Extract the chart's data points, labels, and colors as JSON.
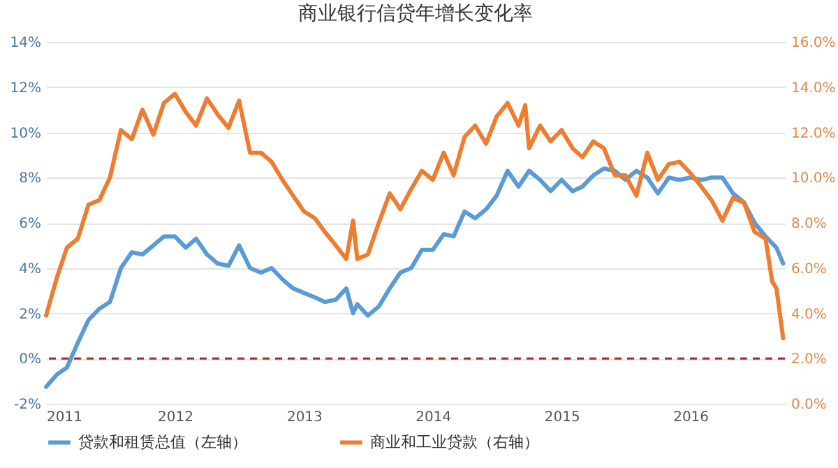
{
  "chart_data": {
    "type": "line",
    "title": "商业银行信贷年增长变化率",
    "xlim": [
      "2011-01-01",
      "2016-09-25"
    ],
    "xticks": [
      "2011",
      "2012",
      "2013",
      "2014",
      "2015",
      "2016"
    ],
    "ylim": [
      -2,
      14
    ],
    "yticks": [
      {
        "value": -2,
        "label": "-2%"
      },
      {
        "value": 0,
        "label": "0%"
      },
      {
        "value": 2,
        "label": "2%"
      },
      {
        "value": 4,
        "label": "4%"
      },
      {
        "value": 6,
        "label": "6%"
      },
      {
        "value": 8,
        "label": "8%"
      },
      {
        "value": 10,
        "label": "10%"
      },
      {
        "value": 12,
        "label": "12%"
      },
      {
        "value": 14,
        "label": "14%"
      }
    ],
    "y2lim": [
      0,
      16
    ],
    "y2ticks": [
      {
        "value": 0,
        "label": "0.0%"
      },
      {
        "value": 2,
        "label": "2.0%"
      },
      {
        "value": 4,
        "label": "4.0%"
      },
      {
        "value": 6,
        "label": "6.0%"
      },
      {
        "value": 8,
        "label": "8.0%"
      },
      {
        "value": 10,
        "label": "10.0%"
      },
      {
        "value": 12,
        "label": "12.0%"
      },
      {
        "value": 14,
        "label": "14.0%"
      },
      {
        "value": 16,
        "label": "16.0%"
      }
    ],
    "grid": "y",
    "legend": "bottom",
    "line_style": "solid",
    "marker": "none",
    "ref_lines": [
      {
        "axis": "y",
        "value": 0,
        "color": "#a52a2a",
        "line_style": "dashed"
      }
    ],
    "series": [
      {
        "name": "贷款和租赁总值（左轴）",
        "color": "#5b9bd5",
        "x": [
          "2011-01-01",
          "2011-02-01",
          "2011-03-01",
          "2011-04-01",
          "2011-05-01",
          "2011-06-01",
          "2011-07-01",
          "2011-08-01",
          "2011-09-01",
          "2011-10-01",
          "2011-11-01",
          "2011-12-01",
          "2012-01-01",
          "2012-02-01",
          "2012-03-01",
          "2012-04-01",
          "2012-05-01",
          "2012-06-01",
          "2012-07-01",
          "2012-08-01",
          "2012-09-01",
          "2012-10-01",
          "2012-11-01",
          "2012-12-01",
          "2013-01-01",
          "2013-02-01",
          "2013-03-01",
          "2013-04-01",
          "2013-05-01",
          "2013-05-20",
          "2013-06-01",
          "2013-07-01",
          "2013-08-01",
          "2013-09-01",
          "2013-10-01",
          "2013-11-01",
          "2013-12-01",
          "2014-01-01",
          "2014-02-01",
          "2014-03-01",
          "2014-04-01",
          "2014-05-01",
          "2014-06-01",
          "2014-07-01",
          "2014-08-01",
          "2014-09-01",
          "2014-10-01",
          "2014-11-01",
          "2014-12-01",
          "2015-01-01",
          "2015-02-01",
          "2015-03-01",
          "2015-04-01",
          "2015-05-01",
          "2015-06-01",
          "2015-07-01",
          "2015-08-01",
          "2015-09-01",
          "2015-10-01",
          "2015-11-01",
          "2015-12-01",
          "2016-01-01",
          "2016-02-01",
          "2016-03-01",
          "2016-04-01",
          "2016-05-01",
          "2016-06-01",
          "2016-07-01",
          "2016-08-01",
          "2016-09-01",
          "2016-09-20"
        ],
        "values": [
          -1.25,
          -0.7,
          -0.4,
          0.7,
          1.7,
          2.2,
          2.5,
          4.0,
          4.7,
          4.6,
          5.0,
          5.4,
          5.4,
          4.9,
          5.3,
          4.6,
          4.2,
          4.1,
          5.0,
          4.0,
          3.8,
          4.0,
          3.5,
          3.1,
          2.9,
          2.7,
          2.5,
          2.6,
          3.1,
          2.0,
          2.4,
          1.9,
          2.3,
          3.1,
          3.8,
          4.0,
          4.8,
          4.8,
          5.5,
          5.4,
          6.5,
          6.2,
          6.6,
          7.2,
          8.3,
          7.6,
          8.3,
          7.9,
          7.4,
          7.9,
          7.4,
          7.6,
          8.1,
          8.4,
          8.3,
          7.9,
          8.3,
          8.0,
          7.3,
          8.0,
          7.9,
          8.0,
          7.9,
          8.0,
          8.0,
          7.3,
          6.9,
          6.0,
          5.4,
          4.9,
          4.2
        ]
      },
      {
        "name": "商业和工业贷款（右轴）",
        "color": "#ed7d31",
        "axis": "y2",
        "x": [
          "2011-01-01",
          "2011-02-01",
          "2011-03-01",
          "2011-04-01",
          "2011-05-01",
          "2011-06-01",
          "2011-07-01",
          "2011-08-01",
          "2011-09-01",
          "2011-10-01",
          "2011-11-01",
          "2011-12-01",
          "2012-01-01",
          "2012-02-01",
          "2012-03-01",
          "2012-04-01",
          "2012-05-01",
          "2012-06-01",
          "2012-07-01",
          "2012-08-01",
          "2012-09-01",
          "2012-10-01",
          "2012-11-01",
          "2012-12-01",
          "2013-01-01",
          "2013-02-01",
          "2013-03-01",
          "2013-04-01",
          "2013-05-01",
          "2013-05-20",
          "2013-06-01",
          "2013-07-01",
          "2013-08-01",
          "2013-09-01",
          "2013-10-01",
          "2013-11-01",
          "2013-12-01",
          "2014-01-01",
          "2014-02-01",
          "2014-03-01",
          "2014-04-01",
          "2014-05-01",
          "2014-06-01",
          "2014-07-01",
          "2014-08-01",
          "2014-09-01",
          "2014-09-20",
          "2014-10-01",
          "2014-11-01",
          "2014-12-01",
          "2015-01-01",
          "2015-02-01",
          "2015-03-01",
          "2015-04-01",
          "2015-05-01",
          "2015-06-01",
          "2015-07-01",
          "2015-08-01",
          "2015-09-01",
          "2015-10-01",
          "2015-11-01",
          "2015-12-01",
          "2016-01-01",
          "2016-02-01",
          "2016-03-01",
          "2016-04-01",
          "2016-05-01",
          "2016-06-01",
          "2016-07-01",
          "2016-08-01",
          "2016-08-20",
          "2016-09-01",
          "2016-09-20"
        ],
        "values": [
          3.9,
          5.6,
          6.9,
          7.3,
          8.8,
          9.0,
          10.0,
          12.1,
          11.7,
          13.0,
          11.9,
          13.3,
          13.7,
          12.9,
          12.3,
          13.5,
          12.8,
          12.2,
          13.4,
          11.1,
          11.1,
          10.7,
          9.9,
          9.2,
          8.5,
          8.2,
          7.6,
          7.0,
          6.4,
          8.1,
          6.4,
          6.6,
          8.0,
          9.3,
          8.6,
          9.5,
          10.3,
          9.9,
          11.1,
          10.1,
          11.8,
          12.3,
          11.5,
          12.7,
          13.3,
          12.3,
          13.2,
          11.3,
          12.3,
          11.6,
          12.1,
          11.3,
          10.9,
          11.6,
          11.3,
          10.1,
          10.1,
          9.2,
          11.1,
          9.9,
          10.6,
          10.7,
          10.2,
          9.6,
          9.0,
          8.1,
          9.1,
          8.9,
          7.6,
          7.3,
          5.4,
          5.1,
          2.9
        ]
      }
    ]
  }
}
